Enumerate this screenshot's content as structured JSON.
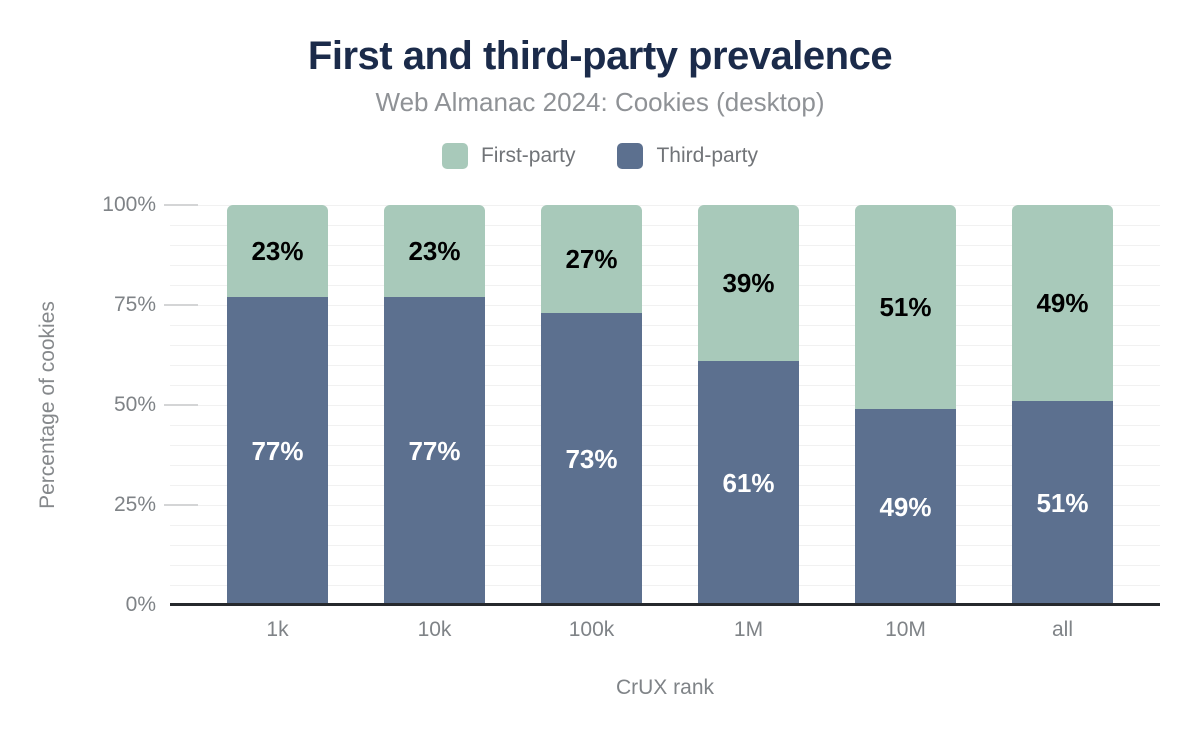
{
  "title": "First and third-party prevalence",
  "subtitle": "Web Almanac 2024: Cookies (desktop)",
  "legend": {
    "position": "top",
    "items": [
      {
        "label": "First-party",
        "color": "#a8c9ba"
      },
      {
        "label": "Third-party",
        "color": "#5c708f"
      }
    ]
  },
  "chart_data": {
    "type": "bar",
    "stacked": true,
    "title": "First and third-party prevalence",
    "subtitle": "Web Almanac 2024: Cookies (desktop)",
    "categories": [
      "1k",
      "10k",
      "100k",
      "1M",
      "10M",
      "all"
    ],
    "series": [
      {
        "name": "First-party",
        "color": "#a8c9ba",
        "label_color": "#000000",
        "values": [
          23,
          23,
          27,
          39,
          51,
          49
        ]
      },
      {
        "name": "Third-party",
        "color": "#5c708f",
        "label_color": "#ffffff",
        "values": [
          77,
          77,
          73,
          61,
          49,
          51
        ]
      }
    ],
    "data_labels": [
      "23%",
      "23%",
      "27%",
      "39%",
      "51%",
      "49%",
      "77%",
      "77%",
      "73%",
      "61%",
      "49%",
      "51%"
    ],
    "xlabel": "CrUX rank",
    "ylabel": "Percentage of cookies",
    "ylim": [
      0,
      100
    ],
    "ytick_labels": [
      "0%",
      "25%",
      "50%",
      "75%",
      "100%"
    ],
    "ytick_values": [
      0,
      25,
      50,
      75,
      100
    ],
    "grid": "horizontal, minor every 5%",
    "legend_position": "top"
  },
  "colors": {
    "background": "#ffffff",
    "title": "#1b2b4a",
    "subtitle": "#8f9296",
    "axis_text": "#7f8387",
    "legend_text": "#717478",
    "gridline": "#f1f1f1",
    "tick": "#d4d5d6",
    "axis_line": "#26292d",
    "first_party": "#a8c9ba",
    "third_party": "#5c708f"
  }
}
